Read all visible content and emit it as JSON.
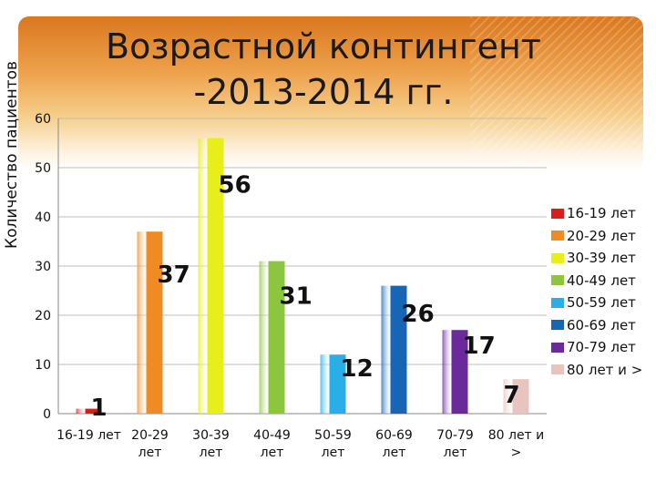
{
  "chart_data": {
    "type": "bar",
    "title": "Возрастной контингент -2013-2014 гг.",
    "ylabel": "Количество пациентов",
    "xlabel": "",
    "ylim": [
      0,
      60
    ],
    "yticks": [
      0,
      10,
      20,
      30,
      40,
      50,
      60
    ],
    "grid": true,
    "legend_position": "right",
    "categories": [
      [
        "16-19 лет"
      ],
      [
        "20-29",
        "лет"
      ],
      [
        "30-39",
        "лет"
      ],
      [
        "40-49",
        "лет"
      ],
      [
        "50-59",
        "лет"
      ],
      [
        "60-69",
        "лет"
      ],
      [
        "70-79",
        "лет"
      ],
      [
        "80 лет и",
        ">"
      ]
    ],
    "legend": [
      "16-19 лет",
      "20-29 лет",
      "30-39 лет",
      "40-49 лет",
      "50-59 лет",
      "60-69 лет",
      "70-79 лет",
      "80 лет и >"
    ],
    "values": [
      1,
      37,
      56,
      31,
      12,
      26,
      17,
      7
    ],
    "data_labels": [
      "1",
      "37",
      "56",
      "31",
      "12",
      "26",
      "17",
      "7"
    ],
    "colors": [
      "#d91c1c",
      "#f08a24",
      "#e8ee1a",
      "#8cc63f",
      "#29aee6",
      "#1766b5",
      "#6a2a99",
      "#e8c4bf"
    ]
  }
}
